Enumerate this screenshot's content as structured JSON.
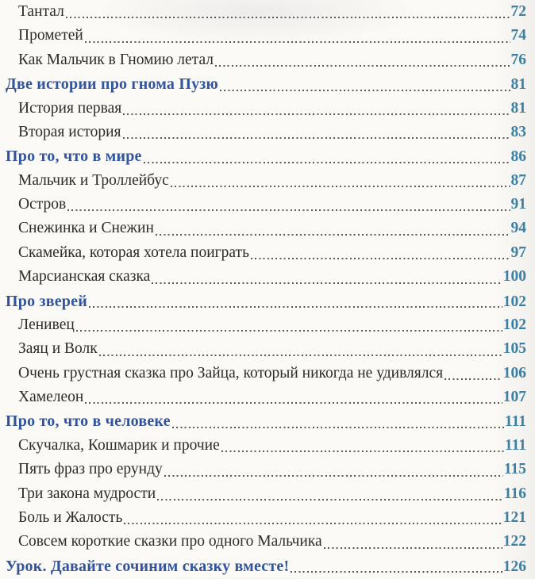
{
  "page": {
    "background_color": "#fbfaf7",
    "entry_text_color": "#2e2c29",
    "section_header_color": "#31549c",
    "page_number_color": "#3d80a6",
    "leader_dot_color": "#3f3d3a"
  },
  "toc": {
    "entries": [
      {
        "level": "entry",
        "label": "Тантал",
        "page": "72"
      },
      {
        "level": "entry",
        "label": "Прометей",
        "page": "74"
      },
      {
        "level": "entry",
        "label": "Как Мальчик в Гномию летал",
        "page": "76"
      },
      {
        "level": "section",
        "label": "Две истории про гнома Пузю",
        "page": "81"
      },
      {
        "level": "entry",
        "label": "История первая",
        "page": "81"
      },
      {
        "level": "entry",
        "label": "Вторая история",
        "page": "83"
      },
      {
        "level": "section",
        "label": "Про то, что в мире",
        "page": "86"
      },
      {
        "level": "entry",
        "label": "Мальчик и Троллейбус",
        "page": "87"
      },
      {
        "level": "entry",
        "label": "Остров",
        "page": "91"
      },
      {
        "level": "entry",
        "label": "Снежинка и Снежин",
        "page": "94"
      },
      {
        "level": "entry",
        "label": "Скамейка, которая хотела поиграть",
        "page": "97"
      },
      {
        "level": "entry",
        "label": "Марсианская сказка",
        "page": "100"
      },
      {
        "level": "section",
        "label": "Про зверей",
        "page": "102"
      },
      {
        "level": "entry",
        "label": "Ленивец",
        "page": "102"
      },
      {
        "level": "entry",
        "label": "Заяц и Волк",
        "page": "105"
      },
      {
        "level": "entry",
        "label": "Очень грустная сказка про Зайца, который никогда не удивлялся",
        "page": "106"
      },
      {
        "level": "entry",
        "label": "Хамелеон",
        "page": "107"
      },
      {
        "level": "section",
        "label": "Про то, что в человеке",
        "page": "111"
      },
      {
        "level": "entry",
        "label": "Скучалка, Кошмарик и прочие",
        "page": "111"
      },
      {
        "level": "entry",
        "label": "Пять фраз про ерунду",
        "page": "115"
      },
      {
        "level": "entry",
        "label": "Три закона мудрости",
        "page": "116"
      },
      {
        "level": "entry",
        "label": "Боль и Жалость",
        "page": "121"
      },
      {
        "level": "entry",
        "label": "Совсем короткие сказки про одного Мальчика",
        "page": "122"
      },
      {
        "level": "section",
        "label": "Урок. Давайте сочиним сказку вместе!",
        "page": "126"
      }
    ]
  }
}
